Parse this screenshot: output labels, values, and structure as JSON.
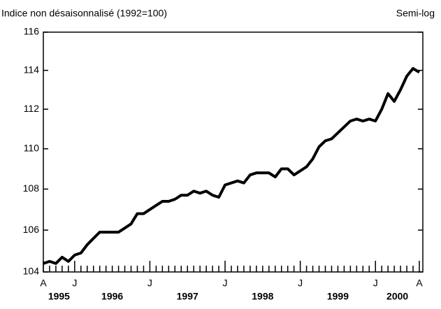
{
  "chart_data": {
    "type": "line",
    "title": "Indice non désaisonnalisé (1992=100)",
    "scale_note": "Semi-log",
    "log_scale": true,
    "categories": [
      "A",
      null,
      null,
      null,
      null,
      "J",
      null,
      null,
      null,
      null,
      null,
      null,
      null,
      null,
      null,
      null,
      null,
      "J",
      null,
      null,
      null,
      null,
      null,
      null,
      null,
      null,
      null,
      null,
      null,
      "J",
      null,
      null,
      null,
      null,
      null,
      null,
      null,
      null,
      null,
      null,
      null,
      "J",
      null,
      null,
      null,
      null,
      null,
      null,
      null,
      null,
      null,
      null,
      null,
      "J",
      null,
      null,
      null,
      null,
      null,
      null,
      "A"
    ],
    "years": [
      "1995",
      "1996",
      "1997",
      "1998",
      "1999",
      "2000"
    ],
    "series": [
      {
        "name": "Indice",
        "color": "#000000",
        "values": [
          104.4,
          104.5,
          104.4,
          104.7,
          104.5,
          104.8,
          104.9,
          105.3,
          105.6,
          105.9,
          105.9,
          105.9,
          105.9,
          106.1,
          106.3,
          106.8,
          106.8,
          107.0,
          107.2,
          107.4,
          107.4,
          107.5,
          107.7,
          107.7,
          107.9,
          107.8,
          107.9,
          107.7,
          107.6,
          108.2,
          108.3,
          108.4,
          108.3,
          108.7,
          108.8,
          108.8,
          108.8,
          108.6,
          109.0,
          109.0,
          108.7,
          108.9,
          109.1,
          109.5,
          110.1,
          110.4,
          110.5,
          110.8,
          111.1,
          111.4,
          111.5,
          111.4,
          111.5,
          111.4,
          112.0,
          112.8,
          112.4,
          113.0,
          113.7,
          114.1,
          113.9
        ]
      }
    ],
    "ylim": [
      104,
      116
    ],
    "yticks": [
      104,
      106,
      108,
      110,
      112,
      114,
      116
    ]
  }
}
